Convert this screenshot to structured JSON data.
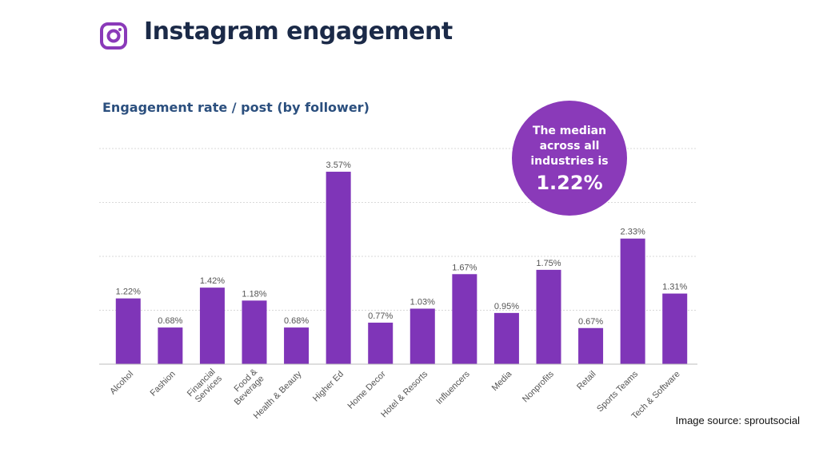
{
  "header": {
    "title": "Instagram engagement",
    "logo_icon": "instagram-icon"
  },
  "callout": {
    "text": "The median across all industries is",
    "value": "1.22%"
  },
  "source": "Image source: sproutsocial",
  "colors": {
    "bar": "#7f35b8",
    "accent": "#8a3ab9",
    "title": "#1b2a48",
    "subtitle": "#2b4f7e"
  },
  "chart_data": {
    "type": "bar",
    "title": "Engagement rate / post (by follower)",
    "xlabel": "",
    "ylabel": "",
    "ylim": [
      0,
      4
    ],
    "grid": true,
    "categories": [
      "Alcohol",
      "Fashion",
      "Financial Services",
      "Food & Beverage",
      "Health & Beauty",
      "Higher Ed",
      "Home Decor",
      "Hotel & Resorts",
      "Influencers",
      "Media",
      "Nonprofits",
      "Retail",
      "Sports Teams",
      "Tech & Software"
    ],
    "values": [
      1.22,
      0.68,
      1.42,
      1.18,
      0.68,
      3.57,
      0.77,
      1.03,
      1.67,
      0.95,
      1.75,
      0.67,
      2.33,
      1.31
    ],
    "labels": [
      "1.22%",
      "0.68%",
      "1.42%",
      "1.18%",
      "0.68%",
      "3.57%",
      "0.77%",
      "1.03%",
      "1.67%",
      "0.95%",
      "1.75%",
      "0.67%",
      "2.33%",
      "1.31%"
    ]
  }
}
